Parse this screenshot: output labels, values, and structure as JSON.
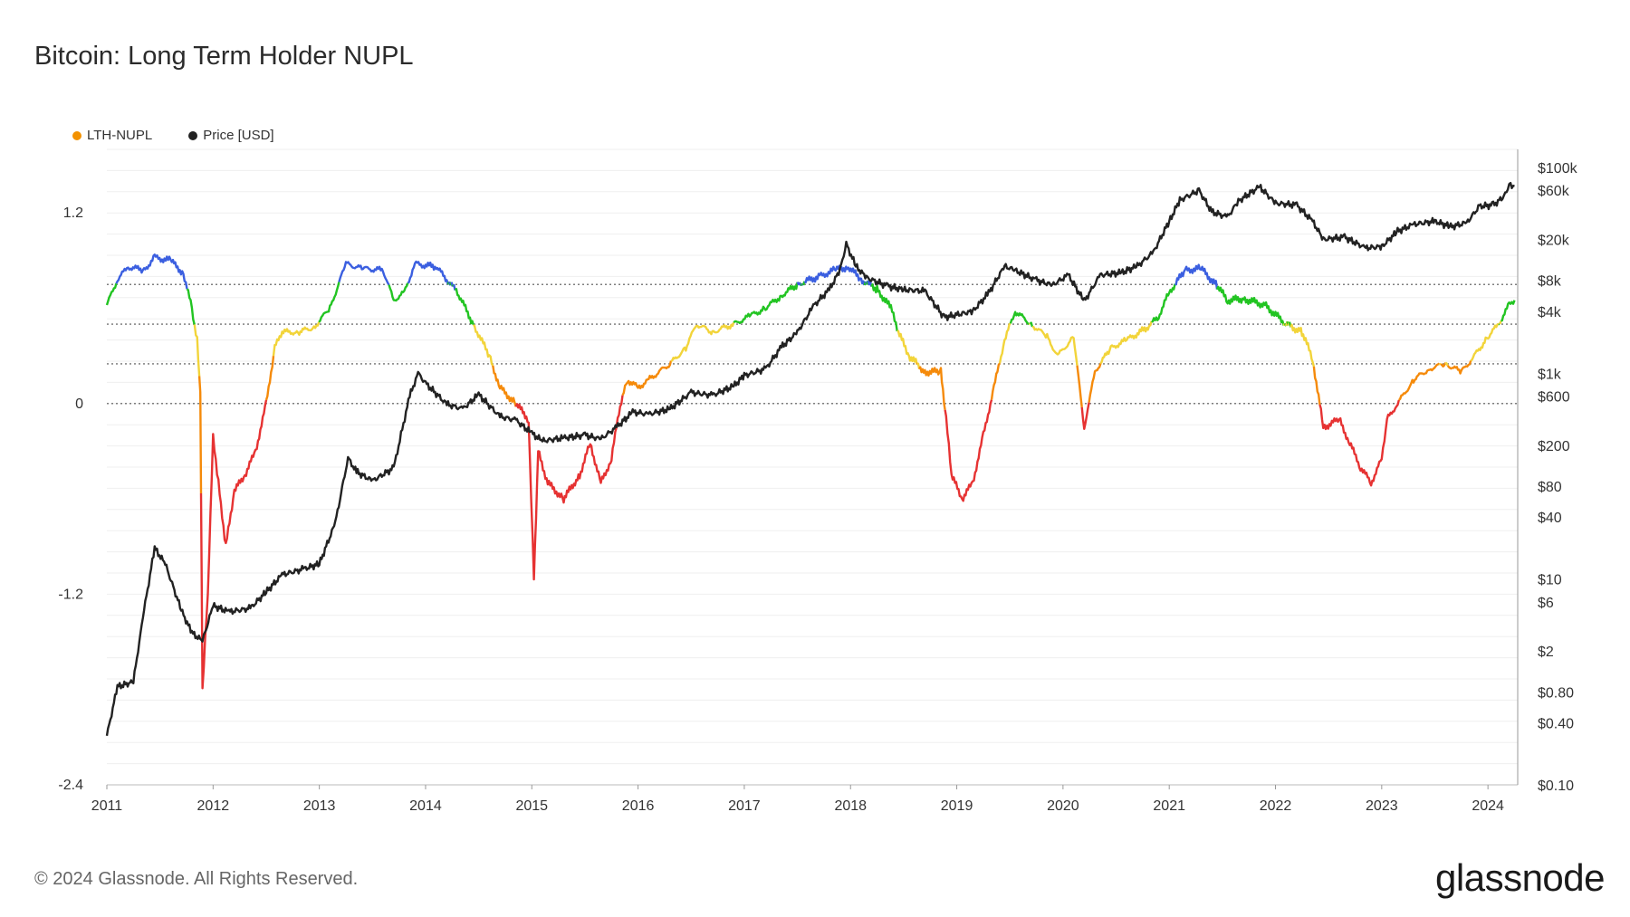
{
  "title": "Bitcoin: Long Term Holder NUPL",
  "footer": "© 2024 Glassnode. All Rights Reserved.",
  "brand": "glassnode",
  "legend": [
    {
      "label": "LTH-NUPL",
      "color": "#f39200"
    },
    {
      "label": "Price [USD]",
      "color": "#222222"
    }
  ],
  "chart_data": {
    "type": "line",
    "title": "Bitcoin: Long Term Holder NUPL",
    "x_ticks": [
      "2011",
      "2012",
      "2013",
      "2014",
      "2015",
      "2016",
      "2017",
      "2018",
      "2019",
      "2020",
      "2021",
      "2022",
      "2023",
      "2024"
    ],
    "y_left": {
      "ticks": [
        1.2,
        0,
        -1.2,
        -2.4
      ],
      "tick_labels": [
        "1.2",
        "0",
        "-1.2",
        "-2.4"
      ],
      "range": [
        -2.4,
        1.6
      ]
    },
    "y_right": {
      "scale": "log",
      "ticks": [
        100000,
        60000,
        20000,
        8000,
        4000,
        1000,
        600,
        200,
        80,
        40,
        10,
        6,
        2,
        0.8,
        0.4,
        0.1
      ],
      "tick_labels": [
        "$100k",
        "$60k",
        "$20k",
        "$8k",
        "$4k",
        "$1k",
        "$600",
        "$200",
        "$80",
        "$40",
        "$10",
        "$6",
        "$2",
        "$0.80",
        "$0.40",
        "$0.10"
      ],
      "range": [
        0.1,
        150000
      ]
    },
    "reference_levels": [
      0.75,
      0.5,
      0.25,
      0
    ],
    "zone_colors": {
      "capitulation": "#e63232",
      "hope_fear": "#f58a0a",
      "optimism_anxiety": "#f2d43a",
      "belief_denial": "#22c422",
      "euphoria_greed": "#3b5fe0"
    },
    "grid": true,
    "legend_position": "top-left",
    "series": [
      {
        "name": "LTH-NUPL",
        "axis": "left",
        "points": [
          [
            2011.0,
            0.62
          ],
          [
            2011.1,
            0.78
          ],
          [
            2011.2,
            0.86
          ],
          [
            2011.35,
            0.84
          ],
          [
            2011.45,
            0.92
          ],
          [
            2011.6,
            0.9
          ],
          [
            2011.72,
            0.82
          ],
          [
            2011.8,
            0.6
          ],
          [
            2011.85,
            0.4
          ],
          [
            2011.88,
            0.05
          ],
          [
            2011.9,
            -1.8
          ],
          [
            2011.95,
            -1.2
          ],
          [
            2012.0,
            -0.2
          ],
          [
            2012.05,
            -0.5
          ],
          [
            2012.12,
            -0.9
          ],
          [
            2012.2,
            -0.55
          ],
          [
            2012.3,
            -0.45
          ],
          [
            2012.4,
            -0.3
          ],
          [
            2012.5,
            0.0
          ],
          [
            2012.58,
            0.35
          ],
          [
            2012.65,
            0.45
          ],
          [
            2012.8,
            0.45
          ],
          [
            2012.95,
            0.48
          ],
          [
            2013.1,
            0.6
          ],
          [
            2013.25,
            0.88
          ],
          [
            2013.4,
            0.85
          ],
          [
            2013.6,
            0.84
          ],
          [
            2013.7,
            0.65
          ],
          [
            2013.8,
            0.7
          ],
          [
            2013.9,
            0.88
          ],
          [
            2014.1,
            0.86
          ],
          [
            2014.3,
            0.7
          ],
          [
            2014.45,
            0.5
          ],
          [
            2014.6,
            0.3
          ],
          [
            2014.7,
            0.1
          ],
          [
            2014.85,
            0.0
          ],
          [
            2014.97,
            -0.1
          ],
          [
            2015.02,
            -1.1
          ],
          [
            2015.06,
            -0.3
          ],
          [
            2015.15,
            -0.5
          ],
          [
            2015.3,
            -0.6
          ],
          [
            2015.45,
            -0.45
          ],
          [
            2015.55,
            -0.25
          ],
          [
            2015.65,
            -0.5
          ],
          [
            2015.75,
            -0.35
          ],
          [
            2015.82,
            -0.05
          ],
          [
            2015.9,
            0.15
          ],
          [
            2016.0,
            0.1
          ],
          [
            2016.1,
            0.15
          ],
          [
            2016.3,
            0.25
          ],
          [
            2016.45,
            0.35
          ],
          [
            2016.55,
            0.5
          ],
          [
            2016.7,
            0.45
          ],
          [
            2016.9,
            0.5
          ],
          [
            2017.05,
            0.55
          ],
          [
            2017.2,
            0.6
          ],
          [
            2017.35,
            0.68
          ],
          [
            2017.5,
            0.75
          ],
          [
            2017.7,
            0.8
          ],
          [
            2017.85,
            0.84
          ],
          [
            2017.98,
            0.86
          ],
          [
            2018.1,
            0.78
          ],
          [
            2018.25,
            0.72
          ],
          [
            2018.38,
            0.6
          ],
          [
            2018.45,
            0.45
          ],
          [
            2018.55,
            0.3
          ],
          [
            2018.7,
            0.2
          ],
          [
            2018.85,
            0.2
          ],
          [
            2018.9,
            -0.1
          ],
          [
            2018.95,
            -0.45
          ],
          [
            2019.05,
            -0.6
          ],
          [
            2019.15,
            -0.5
          ],
          [
            2019.25,
            -0.2
          ],
          [
            2019.35,
            0.1
          ],
          [
            2019.45,
            0.4
          ],
          [
            2019.55,
            0.58
          ],
          [
            2019.7,
            0.5
          ],
          [
            2019.85,
            0.42
          ],
          [
            2019.95,
            0.3
          ],
          [
            2020.1,
            0.42
          ],
          [
            2020.2,
            -0.15
          ],
          [
            2020.3,
            0.2
          ],
          [
            2020.45,
            0.35
          ],
          [
            2020.6,
            0.4
          ],
          [
            2020.8,
            0.48
          ],
          [
            2020.9,
            0.55
          ],
          [
            2021.0,
            0.7
          ],
          [
            2021.15,
            0.84
          ],
          [
            2021.3,
            0.85
          ],
          [
            2021.45,
            0.74
          ],
          [
            2021.55,
            0.65
          ],
          [
            2021.7,
            0.66
          ],
          [
            2021.9,
            0.62
          ],
          [
            2022.1,
            0.5
          ],
          [
            2022.25,
            0.45
          ],
          [
            2022.35,
            0.28
          ],
          [
            2022.45,
            -0.15
          ],
          [
            2022.6,
            -0.1
          ],
          [
            2022.7,
            -0.25
          ],
          [
            2022.8,
            -0.4
          ],
          [
            2022.9,
            -0.5
          ],
          [
            2023.0,
            -0.35
          ],
          [
            2023.05,
            -0.1
          ],
          [
            2023.15,
            0.0
          ],
          [
            2023.3,
            0.15
          ],
          [
            2023.45,
            0.22
          ],
          [
            2023.6,
            0.25
          ],
          [
            2023.75,
            0.2
          ],
          [
            2023.85,
            0.28
          ],
          [
            2024.0,
            0.42
          ],
          [
            2024.1,
            0.5
          ],
          [
            2024.2,
            0.62
          ],
          [
            2024.25,
            0.65
          ]
        ]
      },
      {
        "name": "Price [USD]",
        "axis": "right",
        "color": "#222222",
        "points": [
          [
            2011.0,
            0.3
          ],
          [
            2011.1,
            0.9
          ],
          [
            2011.25,
            1.0
          ],
          [
            2011.35,
            5.0
          ],
          [
            2011.45,
            20.0
          ],
          [
            2011.55,
            14.0
          ],
          [
            2011.7,
            5.0
          ],
          [
            2011.8,
            3.0
          ],
          [
            2011.9,
            2.5
          ],
          [
            2012.0,
            5.5
          ],
          [
            2012.15,
            4.8
          ],
          [
            2012.35,
            5.2
          ],
          [
            2012.5,
            7.5
          ],
          [
            2012.65,
            11.0
          ],
          [
            2012.85,
            12.5
          ],
          [
            2013.0,
            14.0
          ],
          [
            2013.15,
            35.0
          ],
          [
            2013.27,
            150.0
          ],
          [
            2013.35,
            110.0
          ],
          [
            2013.5,
            90.0
          ],
          [
            2013.7,
            120.0
          ],
          [
            2013.85,
            600.0
          ],
          [
            2013.93,
            1000.0
          ],
          [
            2014.0,
            800.0
          ],
          [
            2014.2,
            500.0
          ],
          [
            2014.35,
            450.0
          ],
          [
            2014.5,
            620.0
          ],
          [
            2014.7,
            380.0
          ],
          [
            2014.85,
            350.0
          ],
          [
            2015.0,
            260.0
          ],
          [
            2015.1,
            220.0
          ],
          [
            2015.3,
            235.0
          ],
          [
            2015.5,
            250.0
          ],
          [
            2015.65,
            230.0
          ],
          [
            2015.8,
            300.0
          ],
          [
            2015.95,
            420.0
          ],
          [
            2016.1,
            400.0
          ],
          [
            2016.3,
            450.0
          ],
          [
            2016.5,
            650.0
          ],
          [
            2016.7,
            610.0
          ],
          [
            2016.9,
            750.0
          ],
          [
            2017.0,
            950.0
          ],
          [
            2017.2,
            1100.0
          ],
          [
            2017.35,
            1800.0
          ],
          [
            2017.5,
            2500.0
          ],
          [
            2017.65,
            4500.0
          ],
          [
            2017.8,
            6500.0
          ],
          [
            2017.9,
            10000.0
          ],
          [
            2017.96,
            18000.0
          ],
          [
            2018.05,
            11000.0
          ],
          [
            2018.15,
            8500.0
          ],
          [
            2018.35,
            7000.0
          ],
          [
            2018.5,
            6500.0
          ],
          [
            2018.7,
            6300.0
          ],
          [
            2018.88,
            3500.0
          ],
          [
            2019.0,
            3700.0
          ],
          [
            2019.15,
            4000.0
          ],
          [
            2019.3,
            6000.0
          ],
          [
            2019.45,
            11000.0
          ],
          [
            2019.55,
            10000.0
          ],
          [
            2019.75,
            8000.0
          ],
          [
            2019.9,
            7200.0
          ],
          [
            2020.05,
            9000.0
          ],
          [
            2020.2,
            5000.0
          ],
          [
            2020.35,
            9000.0
          ],
          [
            2020.55,
            9500.0
          ],
          [
            2020.7,
            11000.0
          ],
          [
            2020.85,
            15000.0
          ],
          [
            2021.0,
            30000.0
          ],
          [
            2021.1,
            48000.0
          ],
          [
            2021.28,
            60000.0
          ],
          [
            2021.4,
            37000.0
          ],
          [
            2021.55,
            33000.0
          ],
          [
            2021.65,
            47000.0
          ],
          [
            2021.85,
            65000.0
          ],
          [
            2022.0,
            45000.0
          ],
          [
            2022.2,
            43000.0
          ],
          [
            2022.35,
            30000.0
          ],
          [
            2022.45,
            20000.0
          ],
          [
            2022.65,
            21000.0
          ],
          [
            2022.85,
            16500.0
          ],
          [
            2023.0,
            17000.0
          ],
          [
            2023.15,
            24000.0
          ],
          [
            2023.3,
            28000.0
          ],
          [
            2023.5,
            30000.0
          ],
          [
            2023.65,
            26500.0
          ],
          [
            2023.8,
            29000.0
          ],
          [
            2023.92,
            42000.0
          ],
          [
            2024.05,
            43000.0
          ],
          [
            2024.15,
            52000.0
          ],
          [
            2024.2,
            68000.0
          ],
          [
            2024.25,
            66000.0
          ]
        ]
      }
    ]
  }
}
